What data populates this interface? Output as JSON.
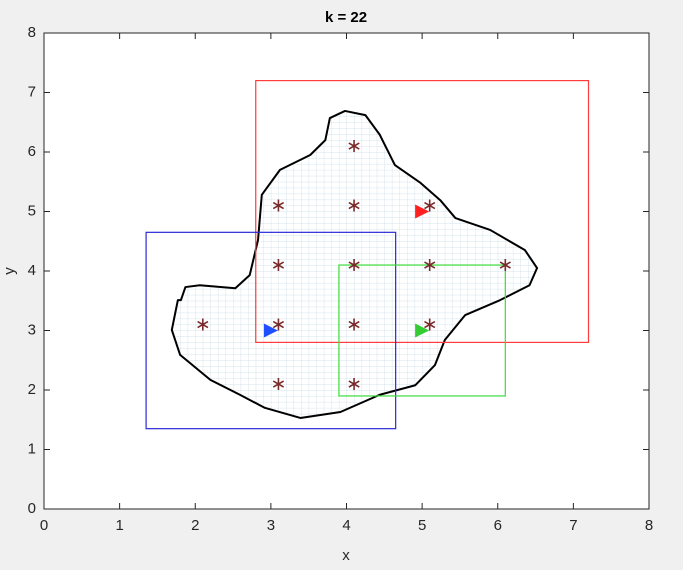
{
  "chart_data": {
    "type": "scatter",
    "title": "k = 22",
    "x_label": "x",
    "y_label": "y",
    "xlim": [
      0,
      8
    ],
    "ylim": [
      0,
      8
    ],
    "xticks": [
      0,
      1,
      2,
      3,
      4,
      5,
      6,
      7,
      8
    ],
    "yticks": [
      0,
      1,
      2,
      3,
      4,
      5,
      6,
      7,
      8
    ],
    "boundary": {
      "color": "#000000",
      "x": [
        1.81,
        1.87,
        2.06,
        2.53,
        2.72,
        2.83,
        2.88,
        3.12,
        3.52,
        3.72,
        3.78,
        3.98,
        4.25,
        4.44,
        4.64,
        4.98,
        5.24,
        5.44,
        5.9,
        6.36,
        6.52,
        6.42,
        6.03,
        5.57,
        5.3,
        5.17,
        4.91,
        4.44,
        3.92,
        3.39,
        2.92,
        2.59,
        2.2,
        1.8,
        1.69,
        1.77
      ],
      "y": [
        3.51,
        3.73,
        3.76,
        3.71,
        3.93,
        4.52,
        5.28,
        5.7,
        5.95,
        6.2,
        6.57,
        6.69,
        6.62,
        6.29,
        5.78,
        5.48,
        5.19,
        4.89,
        4.69,
        4.35,
        4.05,
        3.76,
        3.51,
        3.26,
        2.84,
        2.42,
        2.08,
        1.92,
        1.63,
        1.53,
        1.7,
        1.92,
        2.17,
        2.59,
        3.01,
        3.51
      ]
    },
    "regions": [
      {
        "color": "#ff3b3b",
        "x": [
          2.8,
          7.2
        ],
        "y": [
          2.8,
          7.2
        ]
      },
      {
        "color": "#2b2bd6",
        "x": [
          1.35,
          4.65
        ],
        "y": [
          1.35,
          4.65
        ]
      },
      {
        "color": "#3bdc3b",
        "x": [
          3.9,
          6.1
        ],
        "y": [
          1.9,
          4.1
        ]
      }
    ],
    "points": {
      "color": "#7a2a2a",
      "x": [
        2.1,
        3.1,
        4.1,
        5.1,
        3.1,
        4.1,
        3.1,
        4.1,
        5.1,
        6.1,
        3.1,
        4.1,
        5.1,
        4.1
      ],
      "y": [
        3.1,
        3.1,
        3.1,
        3.1,
        2.1,
        2.1,
        4.1,
        4.1,
        4.1,
        4.1,
        5.1,
        5.1,
        5.1,
        6.1
      ]
    },
    "agents": [
      {
        "color": "#1f4fff",
        "x": 3,
        "y": 3
      },
      {
        "color": "#ff2020",
        "x": 5,
        "y": 5
      },
      {
        "color": "#33cc33",
        "x": 5,
        "y": 3
      }
    ]
  }
}
